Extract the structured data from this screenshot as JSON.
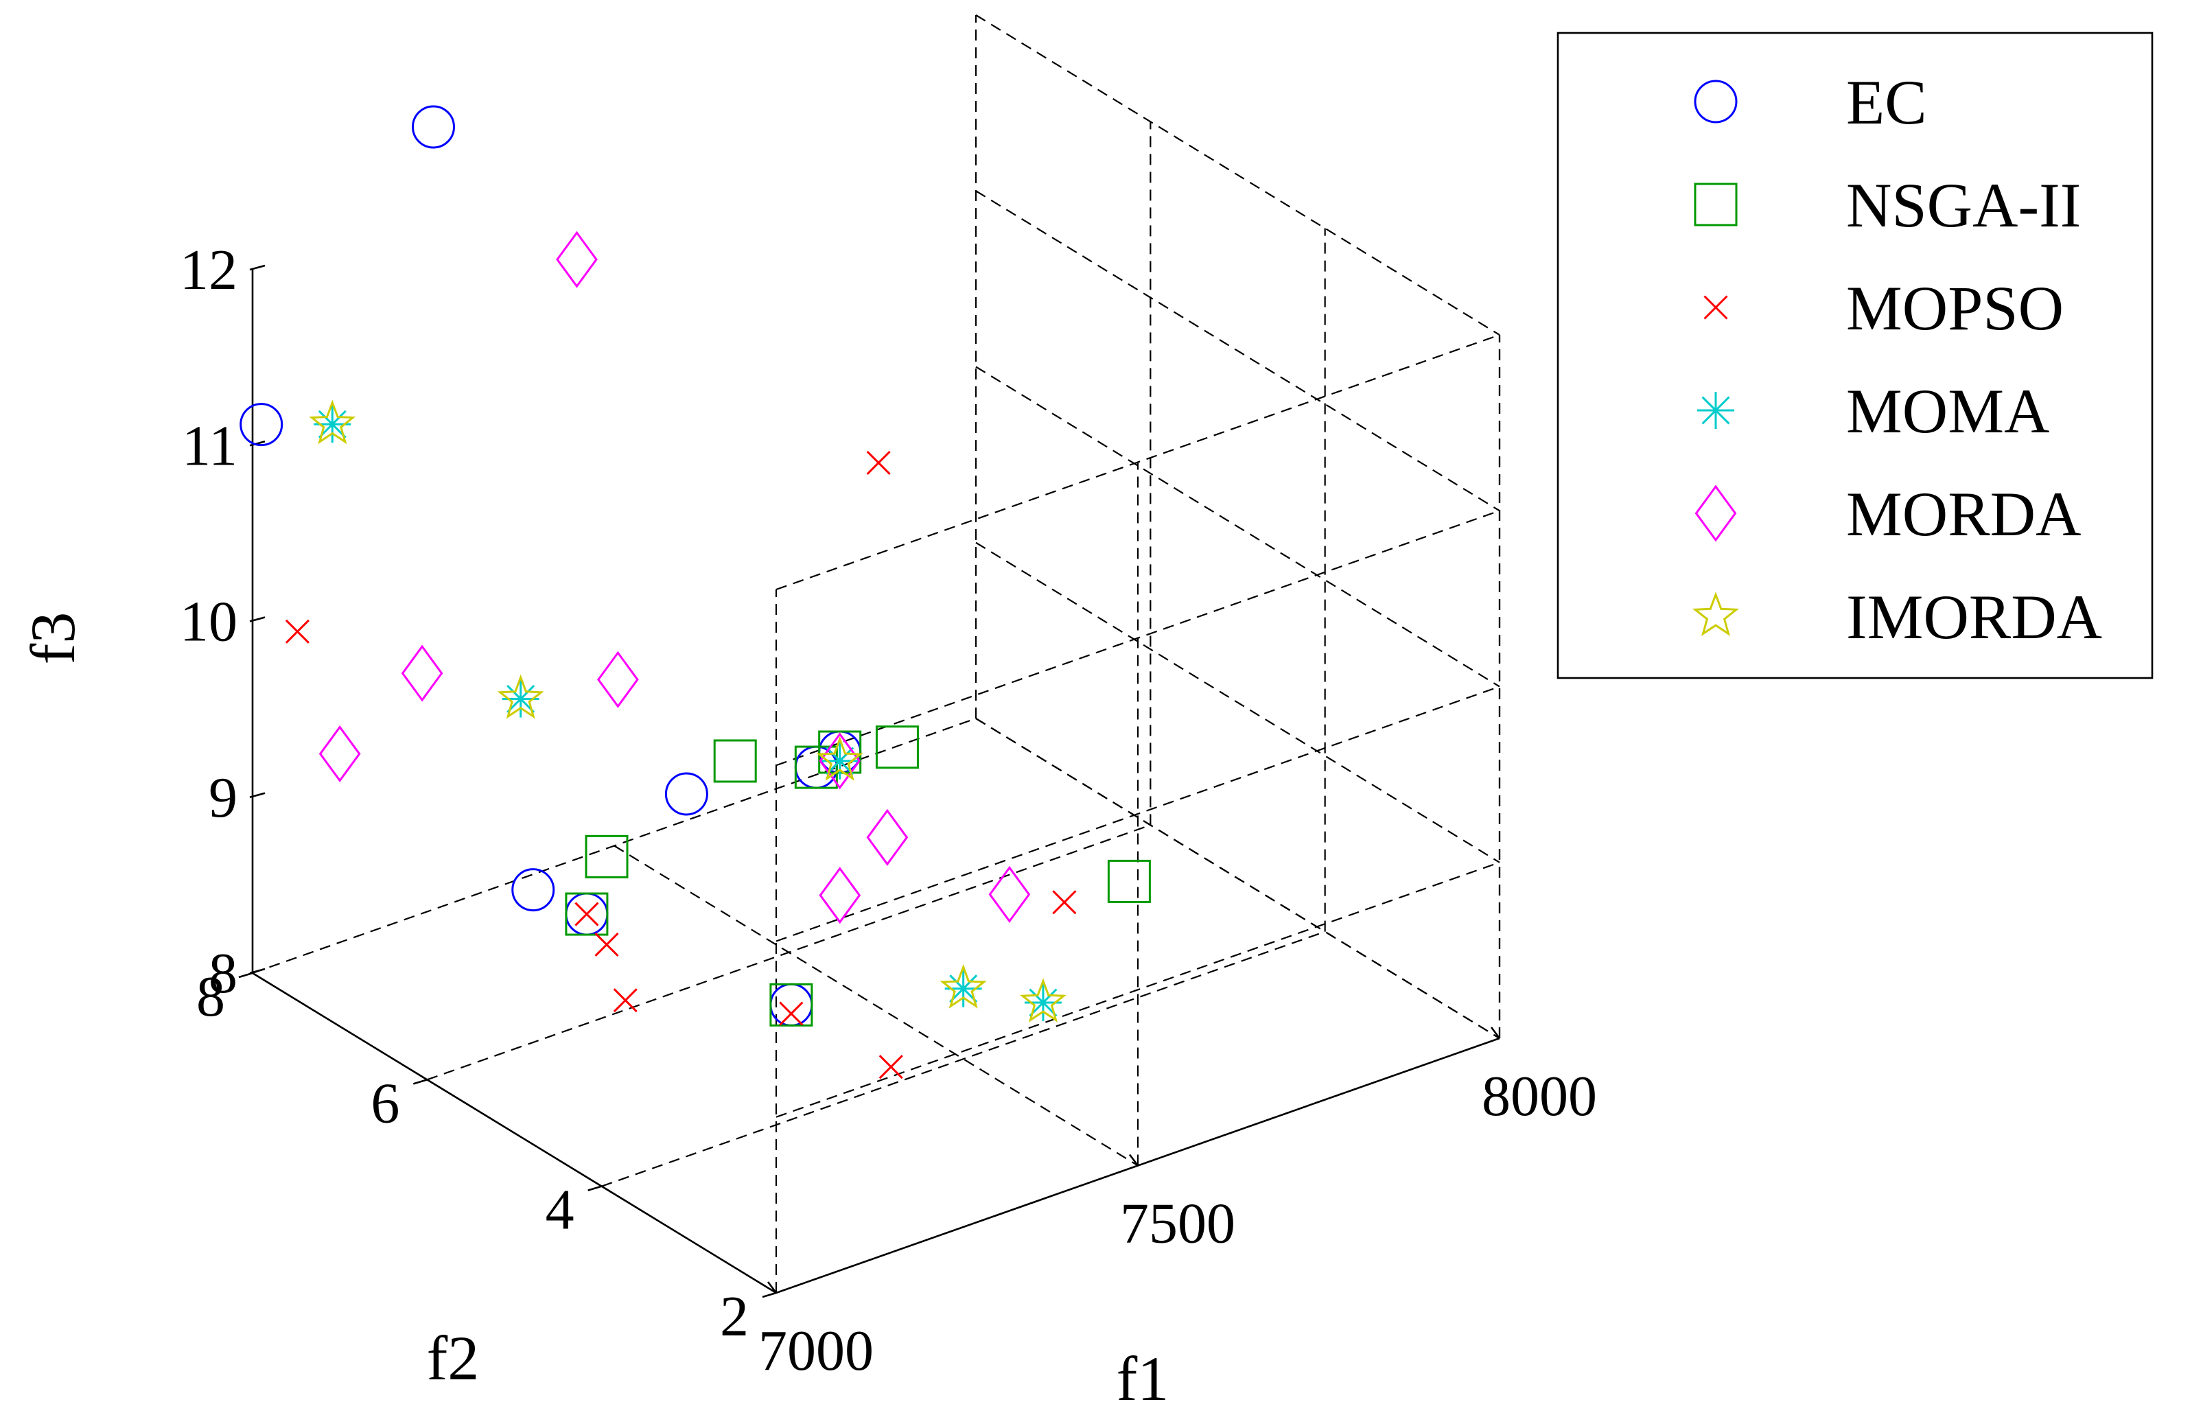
{
  "chart_data": {
    "type": "scatter",
    "projection": "3d",
    "title": "",
    "xlabel": "f1",
    "ylabel": "f2",
    "zlabel": "f3",
    "xlim": [
      7000,
      8000
    ],
    "ylim": [
      2,
      8
    ],
    "zlim": [
      8,
      12
    ],
    "xticks": [
      "7000",
      "7500",
      "8000"
    ],
    "yticks": [
      "2",
      "4",
      "6",
      "8"
    ],
    "zticks": [
      "8",
      "9",
      "10",
      "11",
      "12"
    ],
    "grid": true,
    "legend_position": "top-right",
    "series": [
      {
        "name": "EC",
        "marker": "circle",
        "color": "#0000ff",
        "points": [
          [
            7250,
            8.0,
            12.45
          ],
          [
            7100,
            2.1,
            10.9
          ],
          [
            7250,
            3.9,
            8.7
          ],
          [
            7050,
            5.2,
            9.25
          ],
          [
            7100,
            5.0,
            9.1
          ],
          [
            7550,
            6.1,
            8.95
          ],
          [
            7000,
            7.9,
            11.15
          ],
          [
            7600,
            8.0,
            8.15
          ]
        ]
      },
      {
        "name": "NSGA-II",
        "marker": "square",
        "color": "#009900",
        "points": [
          [
            7100,
            2.1,
            10.9
          ],
          [
            7250,
            3.9,
            8.7
          ],
          [
            7100,
            5.0,
            9.1
          ],
          [
            7200,
            5.6,
            9.1
          ],
          [
            7450,
            6.2,
            9.1
          ],
          [
            7550,
            6.1,
            8.95
          ],
          [
            7650,
            6.0,
            8.95
          ],
          [
            7850,
            5.0,
            8.2
          ]
        ]
      },
      {
        "name": "MOPSO",
        "marker": "x",
        "color": "#ff0000",
        "points": [
          [
            7100,
            2.1,
            10.85
          ],
          [
            7250,
            3.9,
            8.65
          ],
          [
            7100,
            5.0,
            9.1
          ],
          [
            7050,
            7.9,
            9.9
          ],
          [
            7200,
            5.6,
            8.6
          ],
          [
            7700,
            4.5,
            8.45
          ],
          [
            7600,
            5.8,
            10.7
          ],
          [
            7250,
            5.8,
            8.15
          ],
          [
            7400,
            4.0,
            8.1
          ]
        ]
      },
      {
        "name": "MOMA",
        "marker": "asterisk",
        "color": "#00cccc",
        "points": [
          [
            7100,
            2.1,
            10.85
          ],
          [
            7050,
            7.5,
            11.2
          ],
          [
            7250,
            7.0,
            9.5
          ],
          [
            7500,
            4.0,
            8.4
          ],
          [
            7550,
            3.5,
            8.4
          ]
        ]
      },
      {
        "name": "MORDA",
        "marker": "diamond",
        "color": "#ff00ff",
        "points": [
          [
            7100,
            2.1,
            10.85
          ],
          [
            7400,
            7.6,
            11.6
          ],
          [
            7150,
            7.3,
            9.7
          ],
          [
            7000,
            7.0,
            9.55
          ],
          [
            7300,
            6.3,
            9.75
          ],
          [
            7600,
            4.3,
            8.7
          ],
          [
            7450,
            5.0,
            8.7
          ],
          [
            7600,
            5.7,
            8.6
          ]
        ]
      },
      {
        "name": "IMORDA",
        "marker": "star",
        "color": "#cccc00",
        "points": [
          [
            7100,
            2.1,
            10.85
          ],
          [
            7050,
            7.5,
            11.2
          ],
          [
            7250,
            7.0,
            9.5
          ],
          [
            7500,
            4.0,
            8.4
          ],
          [
            7550,
            3.5,
            8.4
          ]
        ]
      }
    ]
  }
}
